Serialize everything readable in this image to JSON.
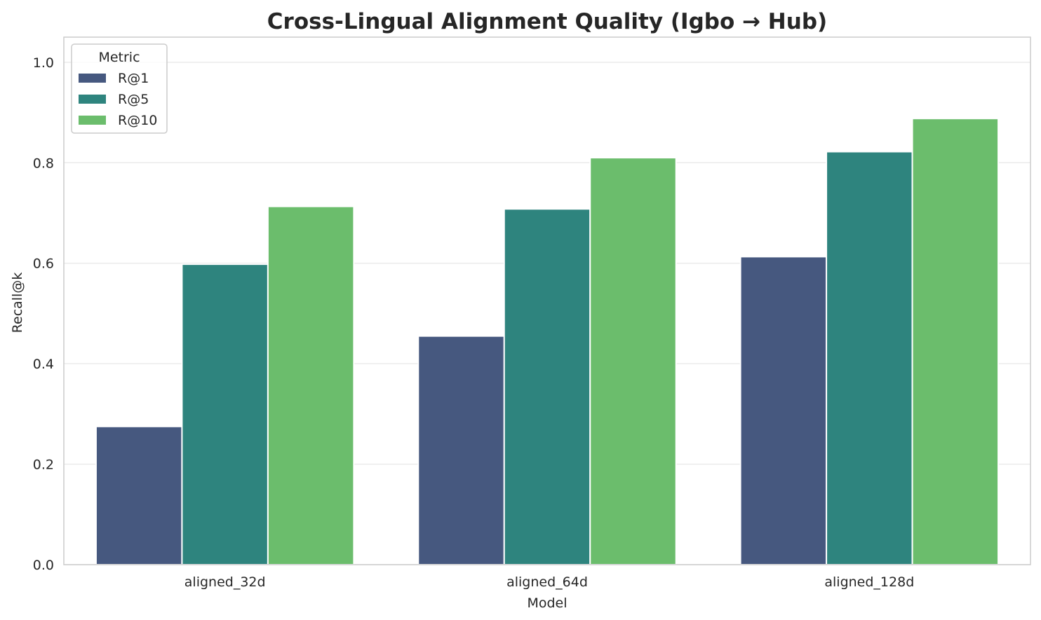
{
  "chart_data": {
    "type": "bar",
    "title": "Cross-Lingual Alignment Quality (Igbo → Hub)",
    "xlabel": "Model",
    "ylabel": "Recall@k",
    "categories": [
      "aligned_32d",
      "aligned_64d",
      "aligned_128d"
    ],
    "series": [
      {
        "name": "R@1",
        "color": "#46587f",
        "values": [
          0.275,
          0.455,
          0.613
        ]
      },
      {
        "name": "R@5",
        "color": "#2e847e",
        "values": [
          0.598,
          0.708,
          0.822
        ]
      },
      {
        "name": "R@10",
        "color": "#6bbd6c",
        "values": [
          0.713,
          0.81,
          0.888
        ]
      }
    ],
    "ylim": [
      0,
      1.05
    ],
    "yticks": [
      "0.0",
      "0.2",
      "0.4",
      "0.6",
      "0.8",
      "1.0"
    ],
    "grid": true,
    "legend": {
      "title": "Metric",
      "position": "top-left"
    }
  }
}
